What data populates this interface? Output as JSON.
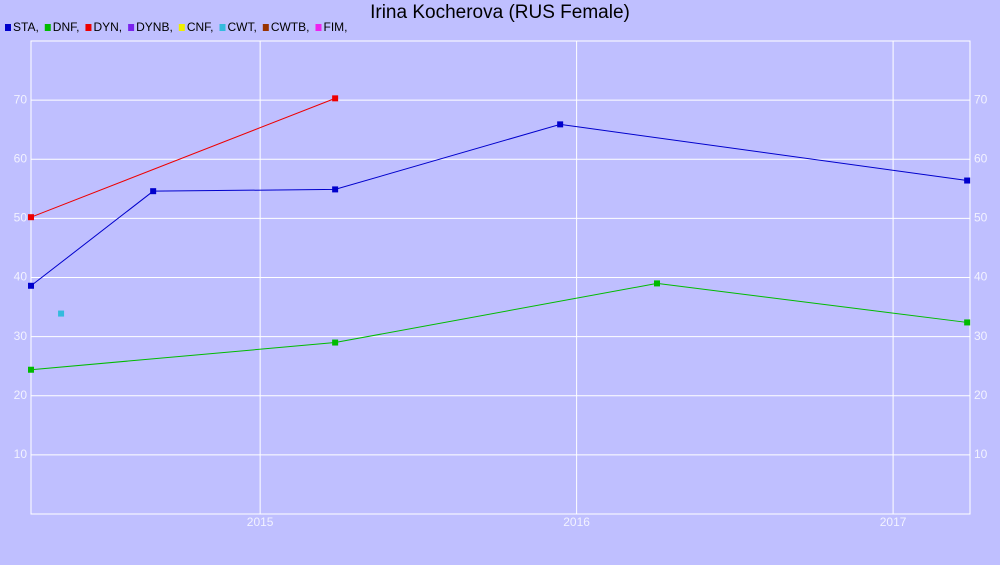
{
  "chart_data": {
    "type": "line",
    "title": "Irina Kocherova (RUS Female)",
    "xlim": [
      2014.276,
      2017.243
    ],
    "xticks": [
      2015,
      2016,
      2017
    ],
    "ylim": [
      0,
      80
    ],
    "yticks": [
      10,
      20,
      30,
      40,
      50,
      60,
      70
    ],
    "grid": true,
    "series": [
      {
        "name": "STA,",
        "color": "#0000cc",
        "x": [
          2014.276,
          2014.662,
          2015.237,
          2015.948,
          2017.234
        ],
        "values": [
          38.6,
          54.6,
          54.9,
          65.9,
          56.4
        ]
      },
      {
        "name": "DNF,",
        "color": "#00bb00",
        "x": [
          2014.276,
          2015.237,
          2016.254,
          2017.234
        ],
        "values": [
          24.4,
          29.0,
          39.0,
          32.4
        ]
      },
      {
        "name": "DYN,",
        "color": "#ee0000",
        "x": [
          2014.276,
          2015.237
        ],
        "values": [
          50.2,
          70.3
        ]
      },
      {
        "name": "DYNB,",
        "color": "#7a22ee",
        "x": [],
        "values": []
      },
      {
        "name": "CNF,",
        "color": "#eeee00",
        "x": [],
        "values": []
      },
      {
        "name": "CWT,",
        "color": "#33bbdd",
        "x": [
          2014.371
        ],
        "values": [
          33.9
        ]
      },
      {
        "name": "CWTB,",
        "color": "#993300",
        "x": [],
        "values": []
      },
      {
        "name": "FIM,",
        "color": "#ee22ee",
        "x": [],
        "values": []
      }
    ]
  }
}
